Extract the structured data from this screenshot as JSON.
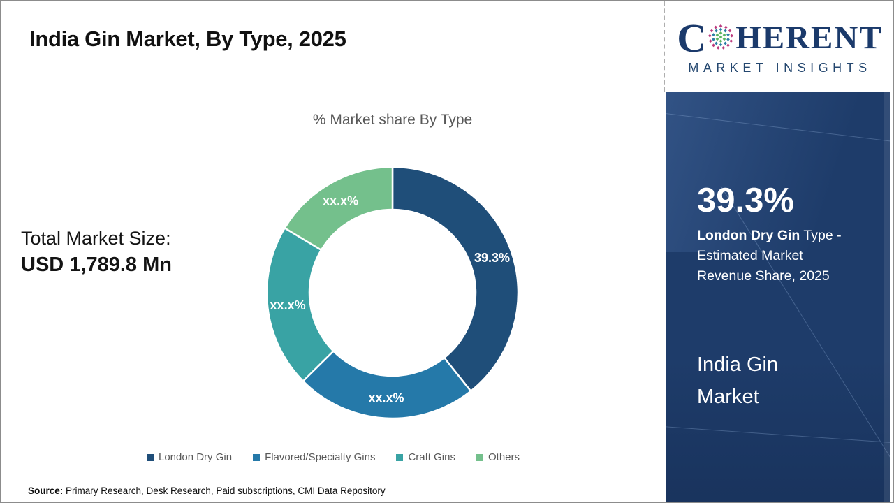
{
  "header": {
    "title": "India Gin Market, By Type, 2025"
  },
  "logo": {
    "c": "C",
    "rest": "HERENT",
    "subtitle": "MARKET INSIGHTS",
    "brand_navy": "#1b3a6b",
    "dot_colors": {
      "inner": "#58b560",
      "middle": "#2c7fa6",
      "outer": "#bb3b7e"
    }
  },
  "main": {
    "total_label": "Total Market Size:",
    "total_value": "USD 1,789.8 Mn"
  },
  "chart_data": {
    "type": "pie",
    "donut": true,
    "title": "% Market share By Type",
    "categories": [
      "London Dry Gin",
      "Flavored/Specialty Gins",
      "Craft Gins",
      "Others"
    ],
    "values": [
      39.3,
      23.3,
      21.0,
      16.4
    ],
    "labels": [
      "39.3%",
      "xx.x%",
      "xx.x%",
      "xx.x%"
    ],
    "colors": [
      "#1f4e79",
      "#2579a9",
      "#39a3a4",
      "#74c08c"
    ],
    "start_angle_deg": 0,
    "direction": "clockwise",
    "legend_position": "bottom",
    "label_color": "#ffffff"
  },
  "sidebar": {
    "stat_value": "39.3%",
    "desc_bold": "London Dry Gin",
    "desc_rest": " Type - Estimated Market Revenue Share, 2025",
    "market_name": "India Gin Market",
    "panel_color": "#1e3c6a"
  },
  "footer": {
    "source_label": "Source:",
    "source_text": " Primary Research, Desk Research, Paid subscriptions, CMI Data Repository"
  }
}
